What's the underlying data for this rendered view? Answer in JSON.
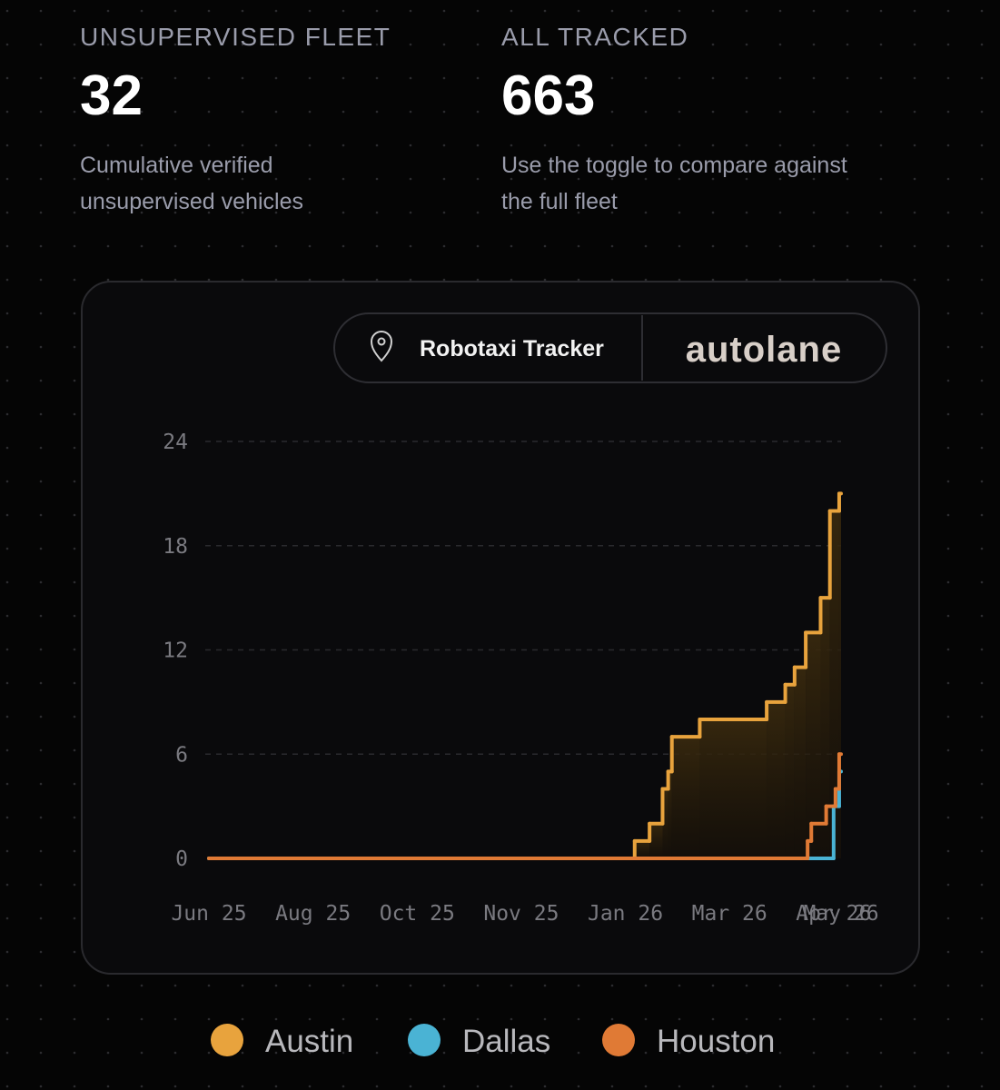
{
  "stats": [
    {
      "label": "UNSUPERVISED FLEET",
      "value": 32,
      "description": [
        "Cumulative verified",
        "unsupervised vehicles"
      ]
    },
    {
      "label": "ALL TRACKED",
      "value": 663,
      "description": [
        "Use the toggle to compare against",
        "the full fleet"
      ]
    }
  ],
  "badge": {
    "title": "Robotaxi Tracker",
    "brand": "autolane"
  },
  "chart_data": {
    "type": "line",
    "step": "after",
    "grid": true,
    "legend": "bottom",
    "xlim": [
      0,
      340
    ],
    "xticks": [
      {
        "value": 0,
        "label": "Jun 25"
      },
      {
        "value": 56,
        "label": "Aug 25"
      },
      {
        "value": 112,
        "label": "Oct 25"
      },
      {
        "value": 168,
        "label": "Nov 25"
      },
      {
        "value": 224,
        "label": "Jan 26"
      },
      {
        "value": 280,
        "label": "Mar 26"
      },
      {
        "value": 336,
        "label": "Apr 26"
      },
      {
        "value": 340,
        "label": "May 26"
      }
    ],
    "ylim": [
      0,
      24
    ],
    "yticks": [
      0,
      6,
      12,
      18,
      24
    ],
    "series": [
      {
        "name": "Austin",
        "color": "#e8a33d",
        "x": [
          0,
          229,
          237,
          244,
          247,
          249,
          264,
          300,
          310,
          315,
          321,
          329,
          334,
          339
        ],
        "values": [
          0,
          1,
          2,
          4,
          5,
          7,
          8,
          9,
          10,
          11,
          13,
          15,
          20,
          21
        ]
      },
      {
        "name": "Dallas",
        "color": "#4ab3d4",
        "x": [
          0,
          336,
          339
        ],
        "values": [
          0,
          3,
          5
        ]
      },
      {
        "name": "Houston",
        "color": "#e07a35",
        "x": [
          0,
          322,
          324,
          332,
          337,
          339
        ],
        "values": [
          0,
          1,
          2,
          3,
          4,
          6
        ]
      }
    ]
  }
}
